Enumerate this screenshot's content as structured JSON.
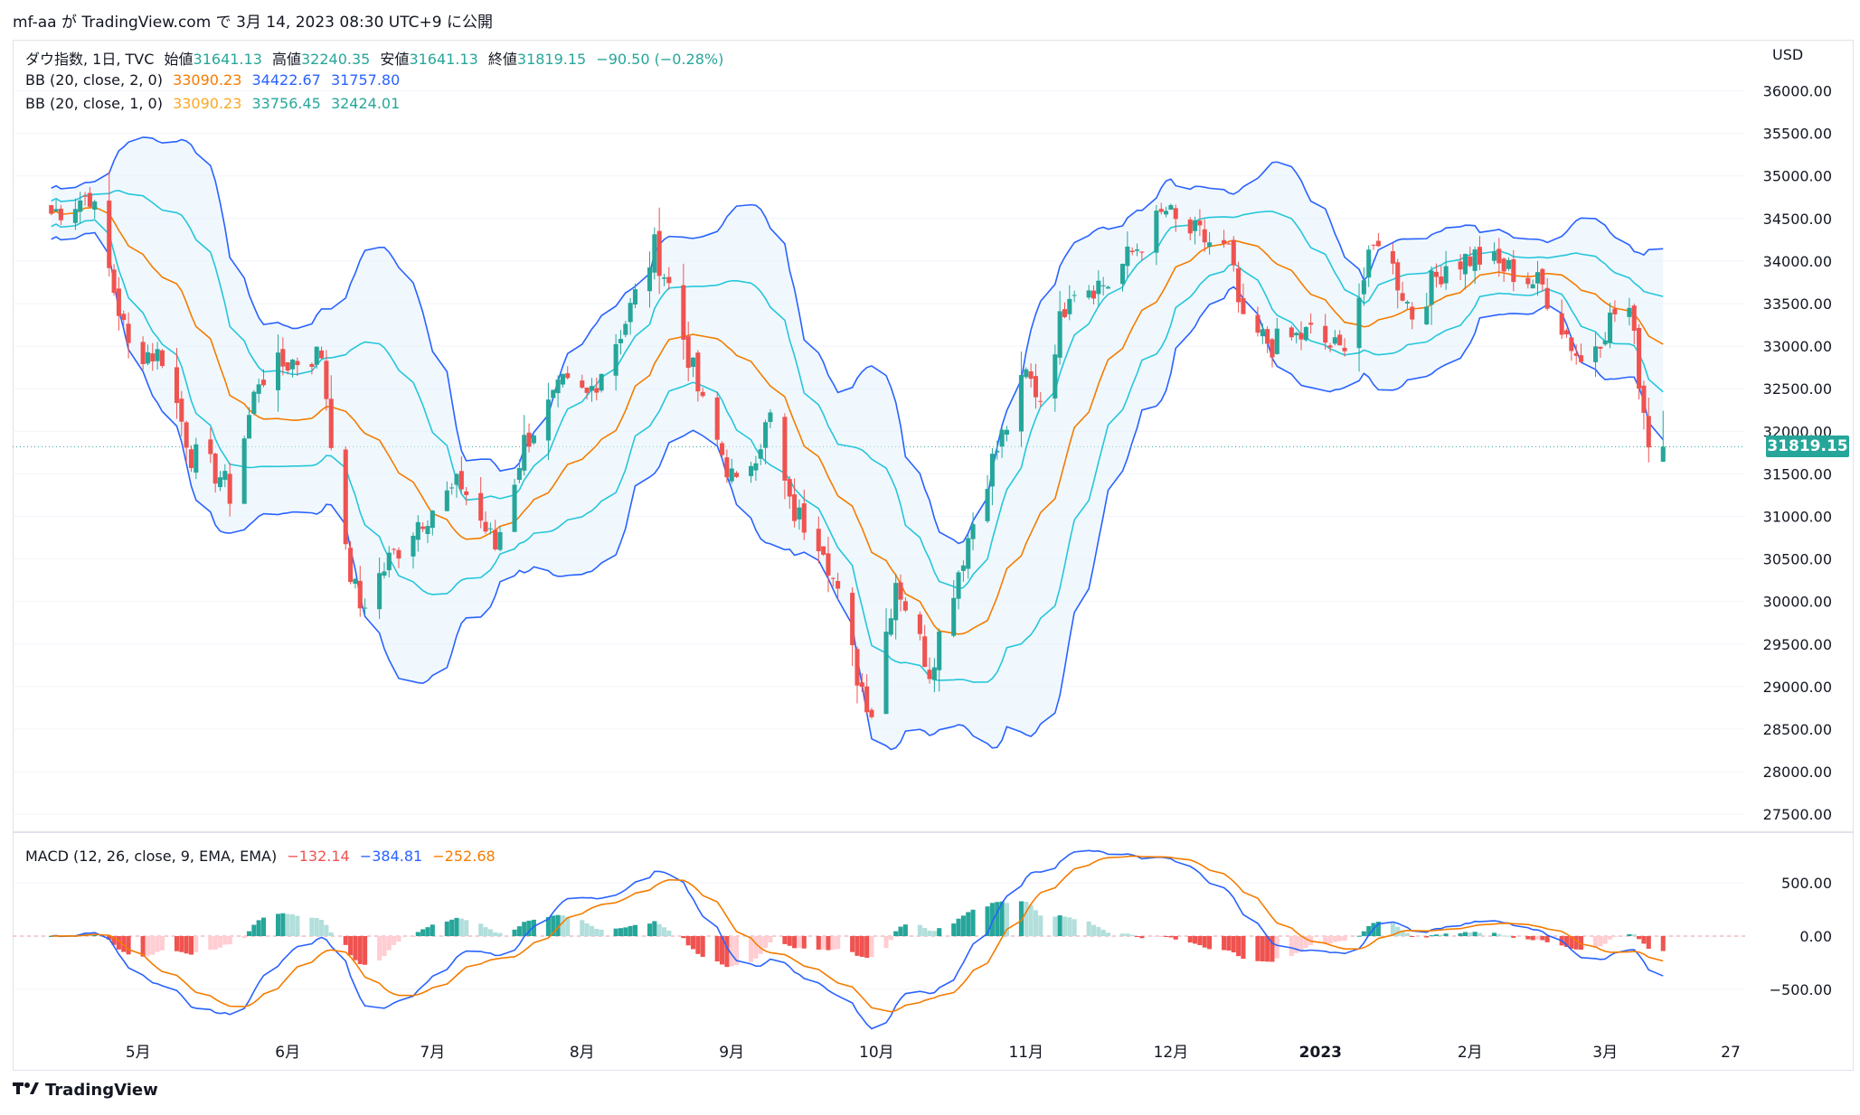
{
  "header": {
    "text": "mf-aa が TradingView.com で 3月 14, 2023 08:30 UTC+9 に公開"
  },
  "legend": {
    "symbol": "ダウ指数, 1日, TVC",
    "open_label": "始値",
    "open": "31641.13",
    "high_label": "高値",
    "high": "32240.35",
    "low_label": "安値",
    "low": "31641.13",
    "close_label": "終値",
    "close": "31819.15",
    "change": "−90.50 (−0.28%)",
    "bb2_label": "BB (20, close, 2, 0)",
    "bb2_basis": "33090.23",
    "bb2_upper": "34422.67",
    "bb2_lower": "31757.80",
    "bb1_label": "BB (20, close, 1, 0)",
    "bb1_basis": "33090.23",
    "bb1_upper": "33756.45",
    "bb1_lower": "32424.01",
    "macd_label": "MACD (12, 26, close, 9, EMA, EMA)",
    "macd_hist": "−132.14",
    "macd_line": "−384.81",
    "macd_signal": "−252.68"
  },
  "axis": {
    "currency": "USD",
    "last_price_label": "31819.15",
    "price_ticks": [
      "36000.00",
      "35500.00",
      "35000.00",
      "34500.00",
      "34000.00",
      "33500.00",
      "33000.00",
      "32500.00",
      "32000.00",
      "31500.00",
      "31000.00",
      "30500.00",
      "30000.00",
      "29500.00",
      "29000.00",
      "28500.00",
      "28000.00",
      "27500.00"
    ],
    "macd_ticks": [
      "500.00",
      "0.00",
      "−500.00"
    ],
    "time_ticks": [
      "5月",
      "6月",
      "7月",
      "8月",
      "9月",
      "10月",
      "11月",
      "12月",
      "2023",
      "2月",
      "3月",
      "27"
    ]
  },
  "footer": {
    "brand": "TradingView"
  },
  "colors": {
    "up": "#26a69a",
    "down": "#ef5350",
    "bb_basis": "#f57c00",
    "bb2_band": "#2962ff",
    "bb1_band": "#26c6da",
    "macd_line": "#2962ff",
    "signal_line": "#f57c00",
    "hist_up_strong": "#26a69a",
    "hist_up_weak": "#b2dfdb",
    "hist_down_strong": "#ef5350",
    "hist_down_weak": "#ffcdd2"
  },
  "chart_data": {
    "type": "candlestick",
    "price_range": [
      27300,
      36600
    ],
    "macd_range": [
      -900,
      900
    ],
    "time_range": [
      "2023-04-05",
      "2023-03-30"
    ],
    "anchors_close": [
      [
        "2022-04-13",
        34560
      ],
      [
        "2022-04-21",
        34790
      ],
      [
        "2022-04-29",
        32980
      ],
      [
        "2022-05-06",
        32890
      ],
      [
        "2022-05-12",
        31730
      ],
      [
        "2022-05-18",
        31480
      ],
      [
        "2022-05-20",
        31260
      ],
      [
        "2022-05-26",
        32630
      ],
      [
        "2022-06-01",
        32810
      ],
      [
        "2022-06-08",
        32910
      ],
      [
        "2022-06-13",
        30520
      ],
      [
        "2022-06-16",
        29930
      ],
      [
        "2022-06-22",
        30480
      ],
      [
        "2022-06-28",
        30950
      ],
      [
        "2022-07-01",
        31100
      ],
      [
        "2022-07-07",
        31380
      ],
      [
        "2022-07-14",
        30630
      ],
      [
        "2022-07-20",
        31870
      ],
      [
        "2022-07-28",
        32520
      ],
      [
        "2022-08-02",
        32400
      ],
      [
        "2022-08-10",
        33300
      ],
      [
        "2022-08-16",
        34150
      ],
      [
        "2022-08-19",
        33710
      ],
      [
        "2022-08-26",
        32280
      ],
      [
        "2022-09-02",
        31320
      ],
      [
        "2022-09-09",
        32150
      ],
      [
        "2022-09-13",
        31100
      ],
      [
        "2022-09-20",
        30700
      ],
      [
        "2022-09-27",
        29140
      ],
      [
        "2022-09-30",
        28720
      ],
      [
        "2022-10-05",
        30270
      ],
      [
        "2022-10-12",
        29210
      ],
      [
        "2022-10-17",
        30190
      ],
      [
        "2022-10-24",
        31500
      ],
      [
        "2022-11-01",
        32650
      ],
      [
        "2022-11-04",
        32400
      ],
      [
        "2022-11-10",
        33710
      ],
      [
        "2022-11-18",
        33740
      ],
      [
        "2022-11-30",
        34590
      ],
      [
        "2022-12-02",
        34430
      ],
      [
        "2022-12-13",
        34100
      ],
      [
        "2022-12-16",
        33200
      ],
      [
        "2022-12-22",
        33020
      ],
      [
        "2022-12-30",
        33150
      ],
      [
        "2023-01-05",
        32930
      ],
      [
        "2023-01-13",
        34300
      ],
      [
        "2023-01-20",
        33380
      ],
      [
        "2023-01-27",
        33980
      ],
      [
        "2023-02-02",
        34050
      ],
      [
        "2023-02-10",
        33870
      ],
      [
        "2023-02-16",
        33700
      ],
      [
        "2023-02-24",
        32810
      ],
      [
        "2023-03-03",
        33390
      ],
      [
        "2023-03-06",
        33430
      ],
      [
        "2023-03-09",
        32250
      ],
      [
        "2023-03-10",
        31910
      ],
      [
        "2023-03-13",
        31819
      ]
    ],
    "series": [
      {
        "name": "BB (20, close, 2, 0)"
      },
      {
        "name": "BB (20, close, 1, 0)"
      },
      {
        "name": "MACD (12, 26, close, 9, EMA, EMA)"
      }
    ]
  }
}
